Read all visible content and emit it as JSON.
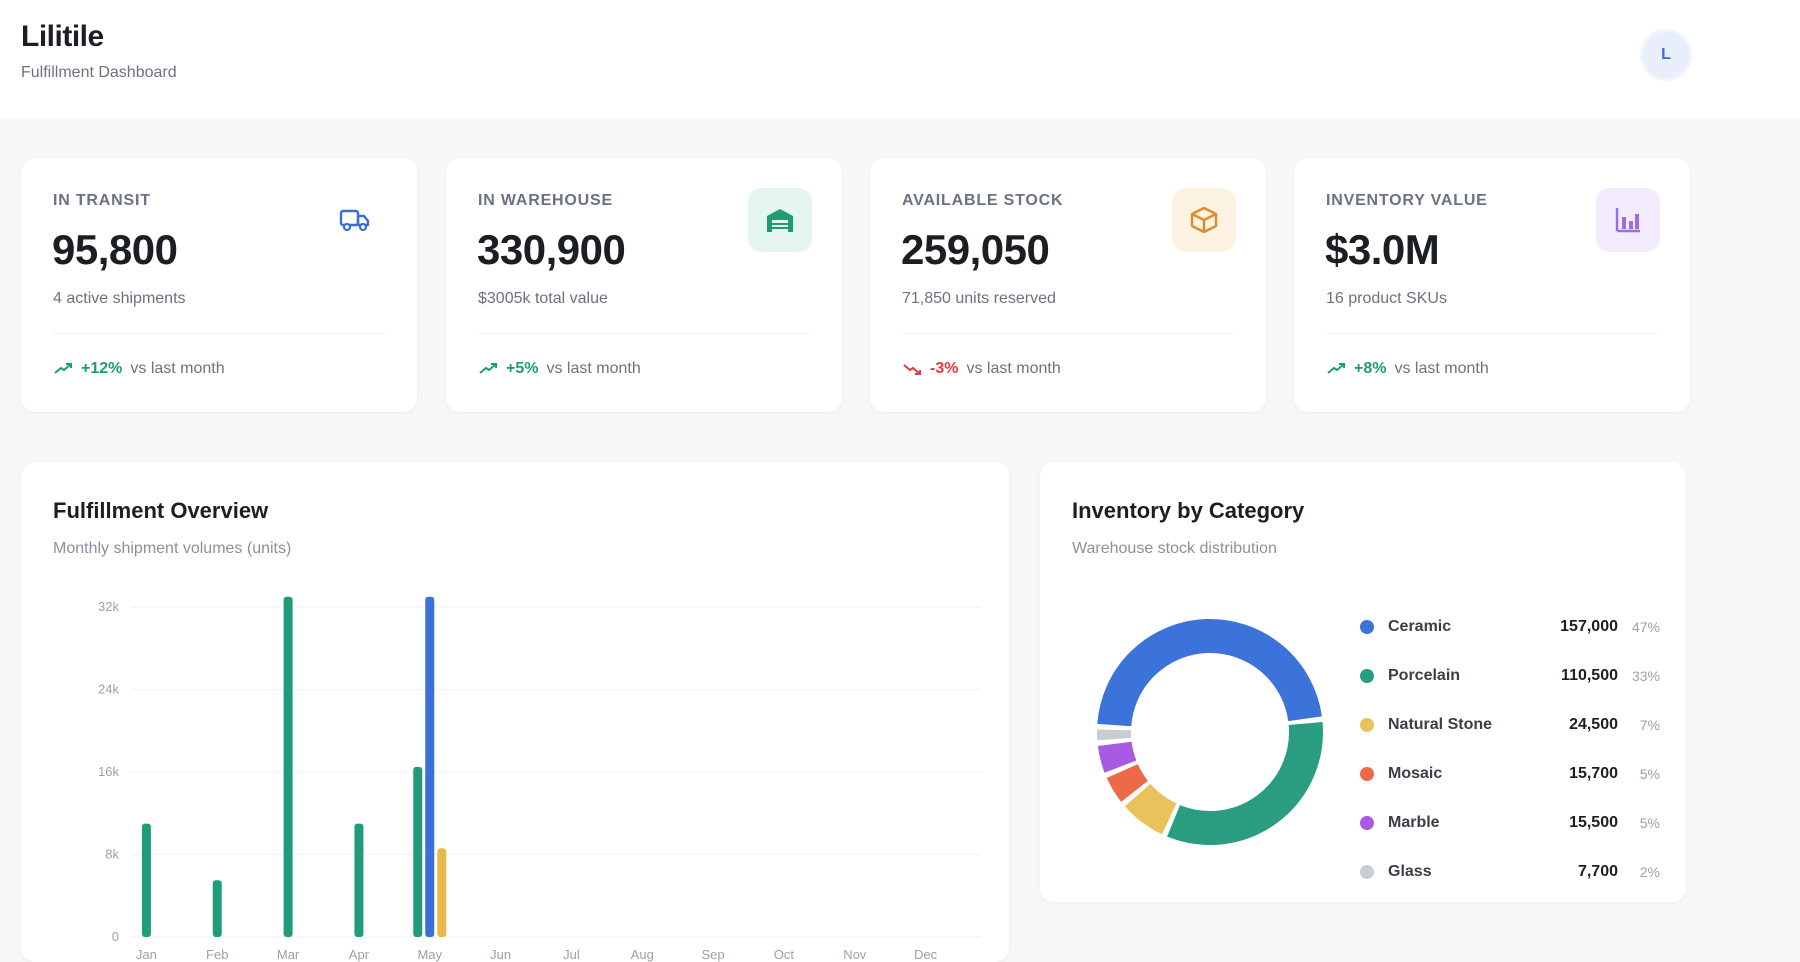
{
  "header": {
    "brand": "Lilitile",
    "subtitle": "Fulfillment Dashboard",
    "avatar_initial": "L"
  },
  "stats": [
    {
      "label": "IN TRANSIT",
      "value": "95,800",
      "sub": "4 active shipments",
      "trend": "+12%",
      "trend_dir": "up",
      "trend_suffix": "vs last month",
      "icon": "truck-icon",
      "icon_color": "#3b6fd8",
      "icon_bg": "#ffffff"
    },
    {
      "label": "IN WAREHOUSE",
      "value": "330,900",
      "sub": "$3005k total value",
      "trend": "+5%",
      "trend_dir": "up",
      "trend_suffix": "vs last month",
      "icon": "warehouse-icon",
      "icon_color": "#1f9d6e",
      "icon_bg": "#e4f5ee"
    },
    {
      "label": "AVAILABLE STOCK",
      "value": "259,050",
      "sub": "71,850 units reserved",
      "trend": "-3%",
      "trend_dir": "down",
      "trend_suffix": "vs last month",
      "icon": "box-icon",
      "icon_color": "#e08a2c",
      "icon_bg": "#fdf3e3"
    },
    {
      "label": "INVENTORY VALUE",
      "value": "$3.0M",
      "sub": "16 product SKUs",
      "trend": "+8%",
      "trend_dir": "up",
      "trend_suffix": "vs last month",
      "icon": "bar-chart-icon",
      "icon_color": "#9b6fe0",
      "icon_bg": "#f1ebfc"
    }
  ],
  "fulfillment": {
    "title": "Fulfillment Overview",
    "subtitle": "Monthly shipment volumes (units)"
  },
  "inventory": {
    "title": "Inventory by Category",
    "subtitle": "Warehouse stock distribution"
  },
  "chart_data": [
    {
      "type": "bar",
      "title": "Fulfillment Overview",
      "subtitle": "Monthly shipment volumes (units)",
      "categories": [
        "Jan",
        "Feb",
        "Mar",
        "Apr",
        "May",
        "Jun",
        "Jul",
        "Aug",
        "Sep",
        "Oct",
        "Nov",
        "Dec"
      ],
      "series": [
        {
          "color": "#1f9d7a",
          "values": [
            11000,
            5500,
            33000,
            11000,
            16500,
            0,
            0,
            0,
            0,
            0,
            0,
            0
          ]
        },
        {
          "color": "#3b6fd8",
          "values": [
            0,
            0,
            0,
            0,
            33000,
            0,
            0,
            0,
            0,
            0,
            0,
            0
          ]
        },
        {
          "color": "#e8b84a",
          "values": [
            0,
            0,
            0,
            0,
            8600,
            0,
            0,
            0,
            0,
            0,
            0,
            0
          ]
        }
      ],
      "y_ticks": [
        "0",
        "8k",
        "16k",
        "24k",
        "32k"
      ],
      "ylim": [
        0,
        32000
      ],
      "grid": true
    },
    {
      "type": "pie",
      "title": "Inventory by Category",
      "subtitle": "Warehouse stock distribution",
      "donut": true,
      "slices": [
        {
          "name": "Ceramic",
          "value": 157000,
          "value_label": "157,000",
          "pct": "47%",
          "color": "#3b73db"
        },
        {
          "name": "Porcelain",
          "value": 110500,
          "value_label": "110,500",
          "pct": "33%",
          "color": "#2a9d80"
        },
        {
          "name": "Natural Stone",
          "value": 24500,
          "value_label": "24,500",
          "pct": "7%",
          "color": "#e8c25a"
        },
        {
          "name": "Mosaic",
          "value": 15700,
          "value_label": "15,700",
          "pct": "5%",
          "color": "#ec6a48"
        },
        {
          "name": "Marble",
          "value": 15500,
          "value_label": "15,500",
          "pct": "5%",
          "color": "#a85be0"
        },
        {
          "name": "Glass",
          "value": 7700,
          "value_label": "7,700",
          "pct": "2%",
          "color": "#c8ccd3"
        }
      ]
    }
  ]
}
